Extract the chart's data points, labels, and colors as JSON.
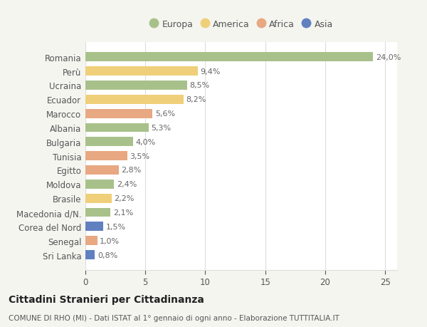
{
  "categories": [
    "Romania",
    "Perù",
    "Ucraina",
    "Ecuador",
    "Marocco",
    "Albania",
    "Bulgaria",
    "Tunisia",
    "Egitto",
    "Moldova",
    "Brasile",
    "Macedonia d/N.",
    "Corea del Nord",
    "Senegal",
    "Sri Lanka"
  ],
  "values": [
    24.0,
    9.4,
    8.5,
    8.2,
    5.6,
    5.3,
    4.0,
    3.5,
    2.8,
    2.4,
    2.2,
    2.1,
    1.5,
    1.0,
    0.8
  ],
  "labels": [
    "24,0%",
    "9,4%",
    "8,5%",
    "8,2%",
    "5,6%",
    "5,3%",
    "4,0%",
    "3,5%",
    "2,8%",
    "2,4%",
    "2,2%",
    "2,1%",
    "1,5%",
    "1,0%",
    "0,8%"
  ],
  "continent": [
    "Europa",
    "America",
    "Europa",
    "America",
    "Africa",
    "Europa",
    "Europa",
    "Africa",
    "Africa",
    "Europa",
    "America",
    "Europa",
    "Asia",
    "Africa",
    "Asia"
  ],
  "colors": {
    "Europa": "#a8c18a",
    "America": "#f0cf7a",
    "Africa": "#e8a882",
    "Asia": "#6080c0"
  },
  "legend_order": [
    "Europa",
    "America",
    "Africa",
    "Asia"
  ],
  "title": "Cittadini Stranieri per Cittadinanza",
  "subtitle": "COMUNE DI RHO (MI) - Dati ISTAT al 1° gennaio di ogni anno - Elaborazione TUTTITALIA.IT",
  "xlim": [
    0,
    26
  ],
  "xticks": [
    0,
    5,
    10,
    15,
    20,
    25
  ],
  "background_color": "#f5f5f0",
  "plot_bg_color": "#ffffff",
  "grid_color": "#dddddd",
  "text_color": "#555555",
  "label_color": "#666666",
  "title_fontsize": 10,
  "subtitle_fontsize": 7.5,
  "bar_height": 0.65,
  "value_fontsize": 8,
  "ytick_fontsize": 8.5,
  "xtick_fontsize": 8.5
}
